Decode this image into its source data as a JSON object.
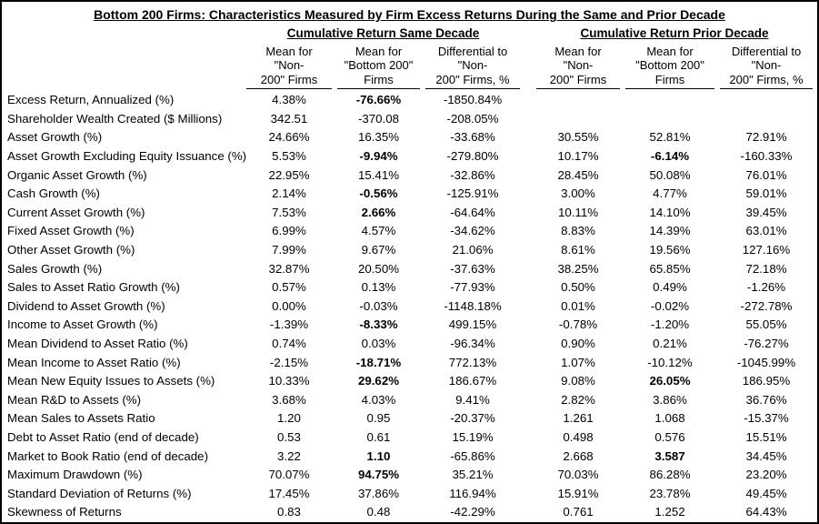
{
  "title": "Bottom 200 Firms: Characteristics Measured by Firm Excess Returns During the Same and Prior Decade",
  "groups": {
    "same": "Cumulative Return Same Decade",
    "prior": "Cumulative Return Prior Decade"
  },
  "column_headers": {
    "mean_non200": "Mean for\n\"Non-\n200\" Firms",
    "mean_bottom200": "Mean for\n\"Bottom 200\"\nFirms",
    "differential": "Differential to\n\"Non-\n200\" Firms, %"
  },
  "colors": {
    "text": "#000000",
    "background": "#ffffff",
    "border": "#000000"
  },
  "rows": [
    {
      "label": "Excess Return, Annualized (%)",
      "values": [
        "4.38%",
        "-76.66%",
        "-1850.84%",
        "",
        "",
        ""
      ],
      "bold": [
        1
      ]
    },
    {
      "label": "Shareholder Wealth Created ($ Millions)",
      "values": [
        "342.51",
        "-370.08",
        "-208.05%",
        "",
        "",
        ""
      ],
      "bold": []
    },
    {
      "label": "Asset Growth (%)",
      "values": [
        "24.66%",
        "16.35%",
        "-33.68%",
        "30.55%",
        "52.81%",
        "72.91%"
      ],
      "bold": []
    },
    {
      "label": "Asset Growth Excluding Equity Issuance (%)",
      "values": [
        "5.53%",
        "-9.94%",
        "-279.80%",
        "10.17%",
        "-6.14%",
        "-160.33%"
      ],
      "bold": [
        1,
        4
      ]
    },
    {
      "label": "Organic Asset Growth (%)",
      "values": [
        "22.95%",
        "15.41%",
        "-32.86%",
        "28.45%",
        "50.08%",
        "76.01%"
      ],
      "bold": []
    },
    {
      "label": "Cash Growth (%)",
      "values": [
        "2.14%",
        "-0.56%",
        "-125.91%",
        "3.00%",
        "4.77%",
        "59.01%"
      ],
      "bold": [
        1
      ]
    },
    {
      "label": "Current Asset Growth (%)",
      "values": [
        "7.53%",
        "2.66%",
        "-64.64%",
        "10.11%",
        "14.10%",
        "39.45%"
      ],
      "bold": [
        1
      ]
    },
    {
      "label": "Fixed Asset Growth (%)",
      "values": [
        "6.99%",
        "4.57%",
        "-34.62%",
        "8.83%",
        "14.39%",
        "63.01%"
      ],
      "bold": []
    },
    {
      "label": "Other Asset Growth (%)",
      "values": [
        "7.99%",
        "9.67%",
        "21.06%",
        "8.61%",
        "19.56%",
        "127.16%"
      ],
      "bold": []
    },
    {
      "label": "Sales Growth (%)",
      "values": [
        "32.87%",
        "20.50%",
        "-37.63%",
        "38.25%",
        "65.85%",
        "72.18%"
      ],
      "bold": []
    },
    {
      "label": "Sales to Asset Ratio Growth (%)",
      "values": [
        "0.57%",
        "0.13%",
        "-77.93%",
        "0.50%",
        "0.49%",
        "-1.26%"
      ],
      "bold": []
    },
    {
      "label": "Dividend to Asset Growth (%)",
      "values": [
        "0.00%",
        "-0.03%",
        "-1148.18%",
        "0.01%",
        "-0.02%",
        "-272.78%"
      ],
      "bold": []
    },
    {
      "label": "Income to Asset Growth (%)",
      "values": [
        "-1.39%",
        "-8.33%",
        "499.15%",
        "-0.78%",
        "-1.20%",
        "55.05%"
      ],
      "bold": [
        1
      ]
    },
    {
      "label": "Mean Dividend to Asset Ratio (%)",
      "values": [
        "0.74%",
        "0.03%",
        "-96.34%",
        "0.90%",
        "0.21%",
        "-76.27%"
      ],
      "bold": []
    },
    {
      "label": "Mean Income to Asset Ratio (%)",
      "values": [
        "-2.15%",
        "-18.71%",
        "772.13%",
        "1.07%",
        "-10.12%",
        "-1045.99%"
      ],
      "bold": [
        1
      ]
    },
    {
      "label": "Mean New Equity Issues to Assets (%)",
      "values": [
        "10.33%",
        "29.62%",
        "186.67%",
        "9.08%",
        "26.05%",
        "186.95%"
      ],
      "bold": [
        1,
        4
      ]
    },
    {
      "label": "Mean R&D to Assets (%)",
      "values": [
        "3.68%",
        "4.03%",
        "9.41%",
        "2.82%",
        "3.86%",
        "36.76%"
      ],
      "bold": []
    },
    {
      "label": "Mean Sales to Assets Ratio",
      "values": [
        "1.20",
        "0.95",
        "-20.37%",
        "1.261",
        "1.068",
        "-15.37%"
      ],
      "bold": []
    },
    {
      "label": "Debt to Asset Ratio (end of decade)",
      "values": [
        "0.53",
        "0.61",
        "15.19%",
        "0.498",
        "0.576",
        "15.51%"
      ],
      "bold": []
    },
    {
      "label": "Market to Book Ratio (end of decade)",
      "values": [
        "3.22",
        "1.10",
        "-65.86%",
        "2.668",
        "3.587",
        "34.45%"
      ],
      "bold": [
        1,
        4
      ]
    },
    {
      "label": "Maximum Drawdown (%)",
      "values": [
        "70.07%",
        "94.75%",
        "35.21%",
        "70.03%",
        "86.28%",
        "23.20%"
      ],
      "bold": [
        1
      ]
    },
    {
      "label": "Standard Deviation of Returns (%)",
      "values": [
        "17.45%",
        "37.86%",
        "116.94%",
        "15.91%",
        "23.78%",
        "49.45%"
      ],
      "bold": []
    },
    {
      "label": "Skewness of Returns",
      "values": [
        "0.83",
        "0.48",
        "-42.29%",
        "0.761",
        "1.252",
        "64.43%"
      ],
      "bold": []
    }
  ]
}
